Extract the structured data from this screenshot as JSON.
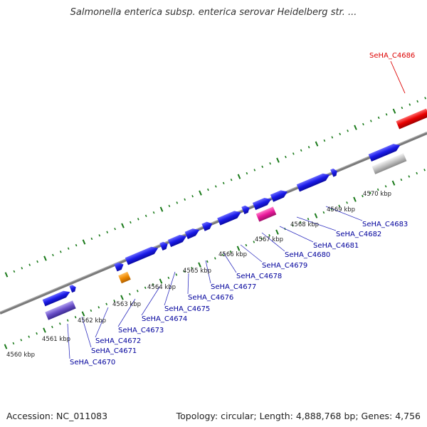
{
  "title": "Salmonella enterica subsp. enterica serovar Heidelberg str. ...",
  "accession": "Accession: NC_011083",
  "topology": "Topology: circular; Length: 4,888,768 bp; Genes: 4,756",
  "colors": {
    "gene_blue": "#1a1ae8",
    "highlight_red": "#e80000",
    "pink": "#e8189a",
    "orange": "#f08a00",
    "purple": "#6a4fc8",
    "gray": "#c0c0c0",
    "tick_green": "#1a7a1a",
    "label_blue": "#00009c",
    "label_red": "#dd0000",
    "backbone": "#808080"
  },
  "position_labels": [
    "4560 kbp",
    "4561 kbp",
    "4562 kbp",
    "4563 kbp",
    "4564 kbp",
    "4565 kbp",
    "4566 kbp",
    "4567 kbp",
    "4568 kbp",
    "4569 kbp",
    "4570 kbp"
  ],
  "gene_labels": [
    "SeHA_C4670",
    "SeHA_C4671",
    "SeHA_C4672",
    "SeHA_C4673",
    "SeHA_C4674",
    "SeHA_C4675",
    "SeHA_C4676",
    "SeHA_C4677",
    "SeHA_C4678",
    "SeHA_C4679",
    "SeHA_C4680",
    "SeHA_C4681",
    "SeHA_C4682",
    "SeHA_C4683"
  ],
  "highlight_label": "SeHA_C4686"
}
